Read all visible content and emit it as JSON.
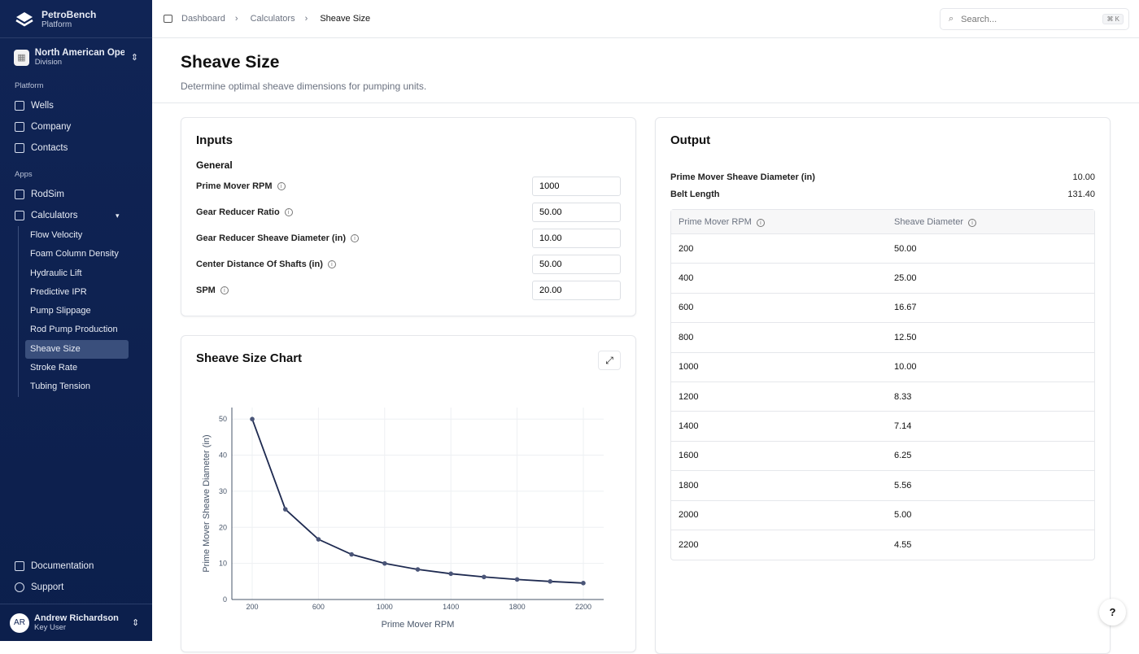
{
  "app": {
    "name": "PetroBench",
    "subtitle": "Platform"
  },
  "org": {
    "name": "North American Operations",
    "type": "Division"
  },
  "sidebar": {
    "platform_label": "Platform",
    "platform_items": [
      {
        "label": "Wells",
        "icon": "wells-icon"
      },
      {
        "label": "Company",
        "icon": "building-icon"
      },
      {
        "label": "Contacts",
        "icon": "users-icon"
      }
    ],
    "apps_label": "Apps",
    "apps_items": [
      {
        "label": "RodSim",
        "icon": "rodsim-icon"
      },
      {
        "label": "Calculators",
        "icon": "calculator-icon"
      }
    ],
    "calculators": [
      "Flow Velocity",
      "Foam Column Density",
      "Hydraulic Lift",
      "Predictive IPR",
      "Pump Slippage",
      "Rod Pump Production",
      "Sheave Size",
      "Stroke Rate",
      "Tubing Tension"
    ],
    "active": "Sheave Size",
    "footer": [
      {
        "label": "Documentation"
      },
      {
        "label": "Support"
      }
    ],
    "user": {
      "initials": "AR",
      "name": "Andrew Richardson",
      "role": "Key User"
    }
  },
  "breadcrumb": [
    "Dashboard",
    "Calculators",
    "Sheave Size"
  ],
  "search": {
    "placeholder": "Search...",
    "shortcut": "⌘ K"
  },
  "page": {
    "title": "Sheave Size",
    "description": "Determine optimal sheave dimensions for pumping units."
  },
  "inputs": {
    "title": "Inputs",
    "section": "General",
    "fields": [
      {
        "label": "Prime Mover RPM",
        "value": "1000"
      },
      {
        "label": "Gear Reducer Ratio",
        "value": "50.00"
      },
      {
        "label": "Gear Reducer Sheave Diameter (in)",
        "value": "10.00"
      },
      {
        "label": "Center Distance Of Shafts (in)",
        "value": "50.00"
      },
      {
        "label": "SPM",
        "value": "20.00"
      }
    ]
  },
  "output": {
    "title": "Output",
    "results": [
      {
        "label": "Prime Mover Sheave Diameter (in)",
        "value": "10.00"
      },
      {
        "label": "Belt Length",
        "value": "131.40"
      }
    ],
    "table": {
      "headers": [
        "Prime Mover RPM",
        "Sheave Diameter"
      ],
      "rows": [
        [
          "200",
          "50.00"
        ],
        [
          "400",
          "25.00"
        ],
        [
          "600",
          "16.67"
        ],
        [
          "800",
          "12.50"
        ],
        [
          "1000",
          "10.00"
        ],
        [
          "1200",
          "8.33"
        ],
        [
          "1400",
          "7.14"
        ],
        [
          "1600",
          "6.25"
        ],
        [
          "1800",
          "5.56"
        ],
        [
          "2000",
          "5.00"
        ],
        [
          "2200",
          "4.55"
        ]
      ]
    }
  },
  "chart_card": {
    "title": "Sheave Size Chart"
  },
  "chart_data": {
    "type": "line",
    "xlabel": "Prime Mover RPM",
    "ylabel": "Prime Mover Sheave Diameter (in)",
    "x": [
      200,
      400,
      600,
      800,
      1000,
      1200,
      1400,
      1600,
      1800,
      2000,
      2200
    ],
    "y": [
      50,
      25,
      16.67,
      12.5,
      10,
      8.33,
      7.14,
      6.25,
      5.56,
      5,
      4.55
    ],
    "xticks": [
      200,
      600,
      1000,
      1400,
      1800,
      2200
    ],
    "yticks": [
      0,
      10,
      20,
      30,
      40,
      50
    ],
    "xlim": [
      77,
      2323
    ],
    "ylim": [
      0,
      53.2
    ],
    "grid": true,
    "color": "#1e2a50"
  }
}
